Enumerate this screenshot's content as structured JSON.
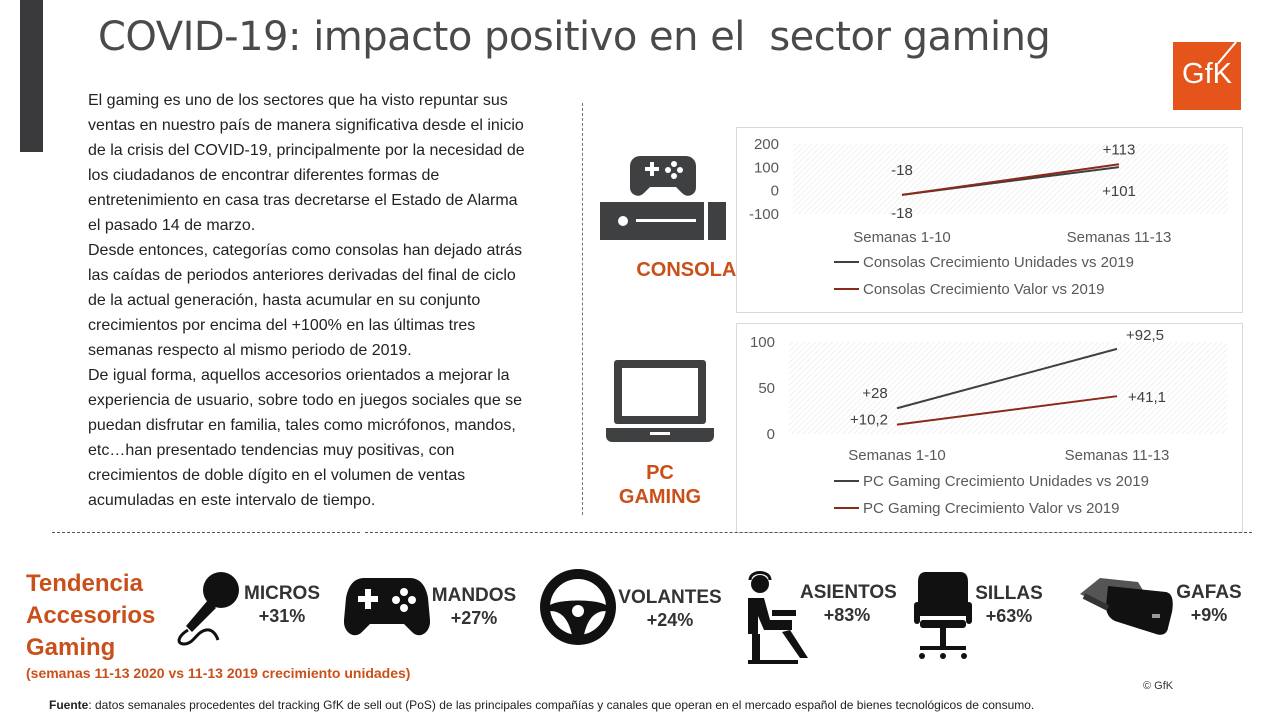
{
  "title": "COVID-19: impacto positivo en el  sector gaming",
  "logo": {
    "text": "GfK"
  },
  "body": {
    "paragraphs": [
      "El gaming es uno de los sectores que ha visto repuntar sus ventas en nuestro país de manera significativa desde el inicio de la crisis del COVID-19, principalmente por la necesidad de los ciudadanos de encontrar diferentes formas de entretenimiento en casa tras decretarse el Estado de Alarma el pasado 14 de marzo.",
      "Desde entonces, categorías como consolas han dejado atrás las caídas de periodos anteriores derivadas del final de ciclo de la actual generación, hasta acumular en su conjunto crecimientos por encima del +100% en las últimas tres semanas respecto al mismo periodo de 2019.",
      "De igual forma, aquellos accesorios orientados a mejorar la experiencia de usuario, sobre todo en juegos sociales que se puedan disfrutar en familia, tales como micrófonos, mandos, etc…han presentado tendencias muy positivas, con crecimientos de doble dígito en el volumen de ventas acumuladas en este intervalo de tiempo."
    ]
  },
  "categories": {
    "consolas_label": "CONSOLAS",
    "pc_label_line1": "PC",
    "pc_label_line2": "GAMING",
    "consolas_icon": "console-icon",
    "pc_icon": "laptop-icon"
  },
  "colors": {
    "units": "#404040",
    "value": "#8b2a1a",
    "accent": "#c9501a",
    "gfk": "#e5541b"
  },
  "chart_data": [
    {
      "type": "line",
      "categories": [
        "Semanas 1-10",
        "Semanas 11-13"
      ],
      "ylim": [
        -100,
        200
      ],
      "yticks": [
        "200",
        "100",
        "0",
        "-100"
      ],
      "grid": "hatched",
      "legend_position": "bottom",
      "series": [
        {
          "name": "Consolas Crecimiento Unidades vs 2019",
          "values": [
            -18,
            101
          ],
          "labels": [
            "-18",
            "+101"
          ],
          "color": "#404040"
        },
        {
          "name": "Consolas Crecimiento Valor vs 2019",
          "values": [
            -18,
            113
          ],
          "labels": [
            "-18",
            "+113"
          ],
          "color": "#8b2a1a"
        }
      ]
    },
    {
      "type": "line",
      "categories": [
        "Semanas 1-10",
        "Semanas 11-13"
      ],
      "ylim": [
        0,
        100
      ],
      "yticks": [
        "100",
        "50",
        "0"
      ],
      "grid": "hatched",
      "legend_position": "bottom",
      "series": [
        {
          "name": "PC Gaming Crecimiento Unidades vs 2019",
          "values": [
            28,
            92.5
          ],
          "labels": [
            "+28",
            "+92,5"
          ],
          "color": "#404040"
        },
        {
          "name": "PC Gaming Crecimiento Valor vs 2019",
          "values": [
            10.2,
            41.1
          ],
          "labels": [
            "+10,2",
            "+41,1"
          ],
          "color": "#8b2a1a"
        }
      ]
    }
  ],
  "trend": {
    "title_lines": [
      "Tendencia",
      "Accesorios",
      "Gaming"
    ],
    "subtitle": "(semanas 11-13 2020 vs 11-13 2019 crecimiento unidades)"
  },
  "accessories": [
    {
      "name": "MICROS",
      "value": "+31%",
      "icon": "microphone-icon"
    },
    {
      "name": "MANDOS",
      "value": "+27%",
      "icon": "gamepad-icon"
    },
    {
      "name": "VOLANTES",
      "value": "+24%",
      "icon": "steering-wheel-icon"
    },
    {
      "name": "ASIENTOS",
      "value": "+83%",
      "icon": "gaming-seat-icon"
    },
    {
      "name": "SILLAS",
      "value": "+63%",
      "icon": "office-chair-icon"
    },
    {
      "name": "GAFAS",
      "value": "+9%",
      "icon": "vr-goggles-icon"
    }
  ],
  "copyright": "© GfK",
  "source": {
    "label": "Fuente",
    "text": ": datos semanales procedentes del tracking GfK de sell out (PoS) de las principales compañías y canales que operan en el mercado español de bienes tecnológicos de consumo."
  }
}
